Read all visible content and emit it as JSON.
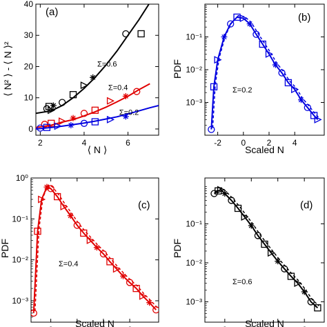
{
  "chart_data": [
    {
      "panel_label": "(a)",
      "type": "scatter",
      "xlabel": "⟨ N ⟩",
      "ylabel": "⟨ N² ⟩ - ⟨ N ⟩²",
      "xlim": [
        1.8,
        7.4
      ],
      "ylim": [
        -2,
        40
      ],
      "xticks": [
        2,
        4,
        6
      ],
      "yticks": [
        0,
        10,
        20,
        30,
        40
      ],
      "series": [
        {
          "name": "Σ=0.6",
          "color": "#000000",
          "points": [
            [
              2.3,
              6.5
            ],
            [
              2.4,
              7.2
            ],
            [
              2.5,
              6.0
            ],
            [
              2.6,
              7.5
            ],
            [
              3.0,
              8.5
            ],
            [
              3.5,
              11.0
            ],
            [
              4.0,
              14.0
            ],
            [
              4.4,
              16.5
            ],
            [
              5.9,
              30.5
            ],
            [
              6.6,
              30.5
            ]
          ],
          "fit": [
            [
              1.8,
              5.0
            ],
            [
              2.5,
              5.8
            ],
            [
              3.0,
              7.5
            ],
            [
              3.5,
              10.0
            ],
            [
              4.0,
              13.0
            ],
            [
              4.5,
              16.5
            ],
            [
              5.0,
              20.5
            ],
            [
              5.5,
              25.0
            ],
            [
              6.0,
              30.0
            ],
            [
              6.5,
              35.0
            ],
            [
              7.0,
              40.5
            ]
          ]
        },
        {
          "name": "Σ=0.4",
          "color": "#e00000",
          "points": [
            [
              2.2,
              1.5
            ],
            [
              2.5,
              1.8
            ],
            [
              3.0,
              2.5
            ],
            [
              3.5,
              3.5
            ],
            [
              4.0,
              5.0
            ],
            [
              4.5,
              6.0
            ],
            [
              5.2,
              9.0
            ],
            [
              5.9,
              10.5
            ],
            [
              6.4,
              12.0
            ]
          ],
          "fit": [
            [
              1.8,
              0.5
            ],
            [
              2.5,
              1.2
            ],
            [
              3.0,
              2.2
            ],
            [
              3.5,
              3.0
            ],
            [
              4.0,
              4.2
            ],
            [
              4.5,
              5.5
            ],
            [
              5.0,
              7.0
            ],
            [
              5.5,
              8.7
            ],
            [
              6.0,
              10.5
            ],
            [
              6.5,
              12.6
            ],
            [
              7.0,
              14.5
            ]
          ]
        },
        {
          "name": "Σ=0.2",
          "color": "#0000e0",
          "points": [
            [
              2.0,
              0.3
            ],
            [
              2.3,
              0.5
            ],
            [
              2.8,
              0.9
            ],
            [
              3.4,
              1.2
            ],
            [
              4.0,
              1.8
            ],
            [
              4.5,
              2.3
            ],
            [
              5.2,
              3.0
            ],
            [
              5.9,
              4.0
            ]
          ],
          "fit": [
            [
              1.8,
              0.0
            ],
            [
              2.5,
              0.5
            ],
            [
              3.0,
              0.9
            ],
            [
              3.5,
              1.4
            ],
            [
              4.0,
              1.9
            ],
            [
              4.5,
              2.5
            ],
            [
              5.0,
              3.2
            ],
            [
              5.5,
              3.9
            ],
            [
              6.0,
              4.8
            ],
            [
              6.5,
              5.8
            ],
            [
              7.0,
              6.8
            ],
            [
              7.4,
              7.5
            ]
          ]
        }
      ]
    },
    {
      "panel_label": "(b)",
      "type": "line",
      "xlabel": "Scaled N",
      "ylabel": "PDF",
      "annotation": "Σ=0.2",
      "yscale": "log",
      "xlim": [
        -3,
        6.3
      ],
      "ylim": [
        0.0001,
        1
      ],
      "xticks": [
        -2,
        0,
        2,
        4
      ],
      "yticks": [
        0.001,
        0.01,
        0.1
      ],
      "ytick_labels": [
        "10⁻³",
        "10⁻²",
        "10⁻¹"
      ],
      "series": [
        {
          "color": "#0000e0",
          "x": [
            -2.5,
            -2.3,
            -2.0,
            -1.5,
            -1.0,
            -0.5,
            0.0,
            0.5,
            1.0,
            1.5,
            2.0,
            2.5,
            3.0,
            3.5,
            4.0,
            4.5,
            5.0,
            5.5,
            5.8
          ],
          "y": [
            0.00015,
            0.003,
            0.02,
            0.1,
            0.25,
            0.4,
            0.37,
            0.25,
            0.12,
            0.06,
            0.03,
            0.014,
            0.008,
            0.004,
            0.0025,
            0.0012,
            0.0007,
            0.0004,
            0.0003
          ]
        }
      ]
    },
    {
      "panel_label": "(c)",
      "type": "line",
      "xlabel": "Scaled N",
      "ylabel": "PDF",
      "annotation": "Σ=0.4",
      "yscale": "log",
      "xlim": [
        -1.5,
        8.2
      ],
      "ylim": [
        0.0003,
        1
      ],
      "xticks": [
        0,
        2,
        4,
        6
      ],
      "yticks": [
        0.001,
        0.01,
        0.1,
        1
      ],
      "ytick_labels": [
        "10⁻³",
        "10⁻²",
        "10⁻¹",
        "10⁰"
      ],
      "series": [
        {
          "color": "#e00000",
          "x": [
            -1.3,
            -1.0,
            -0.7,
            -0.3,
            0.0,
            0.5,
            1.0,
            1.5,
            2.0,
            2.5,
            3.0,
            3.5,
            4.0,
            4.5,
            5.0,
            5.5,
            6.0,
            6.5,
            7.0,
            7.5,
            8.0
          ],
          "y": [
            0.0005,
            0.05,
            0.3,
            0.6,
            0.55,
            0.35,
            0.2,
            0.12,
            0.07,
            0.045,
            0.03,
            0.02,
            0.014,
            0.009,
            0.006,
            0.004,
            0.0028,
            0.002,
            0.0013,
            0.0009,
            0.0006
          ]
        }
      ]
    },
    {
      "panel_label": "(d)",
      "type": "line",
      "xlabel": "Scaled N",
      "ylabel": "PDF",
      "annotation": "Σ=0.6",
      "yscale": "log",
      "xlim": [
        -1.5,
        7.5
      ],
      "ylim": [
        0.0003,
        1.5
      ],
      "xticks": [
        0,
        2,
        4,
        6
      ],
      "yticks": [
        0.001,
        0.01,
        0.1
      ],
      "ytick_labels": [
        "10⁻³",
        "10⁻²",
        "10⁻¹"
      ],
      "series": [
        {
          "color": "#000000",
          "x": [
            -0.8,
            -0.5,
            -0.3,
            0.0,
            0.5,
            1.0,
            1.5,
            2.0,
            2.5,
            3.0,
            3.5,
            4.0,
            4.5,
            5.0,
            5.5,
            6.0,
            6.5,
            7.0
          ],
          "y": [
            0.6,
            0.7,
            0.75,
            0.6,
            0.4,
            0.25,
            0.15,
            0.09,
            0.05,
            0.03,
            0.018,
            0.011,
            0.007,
            0.0045,
            0.003,
            0.0018,
            0.001,
            0.0007
          ]
        }
      ]
    }
  ]
}
